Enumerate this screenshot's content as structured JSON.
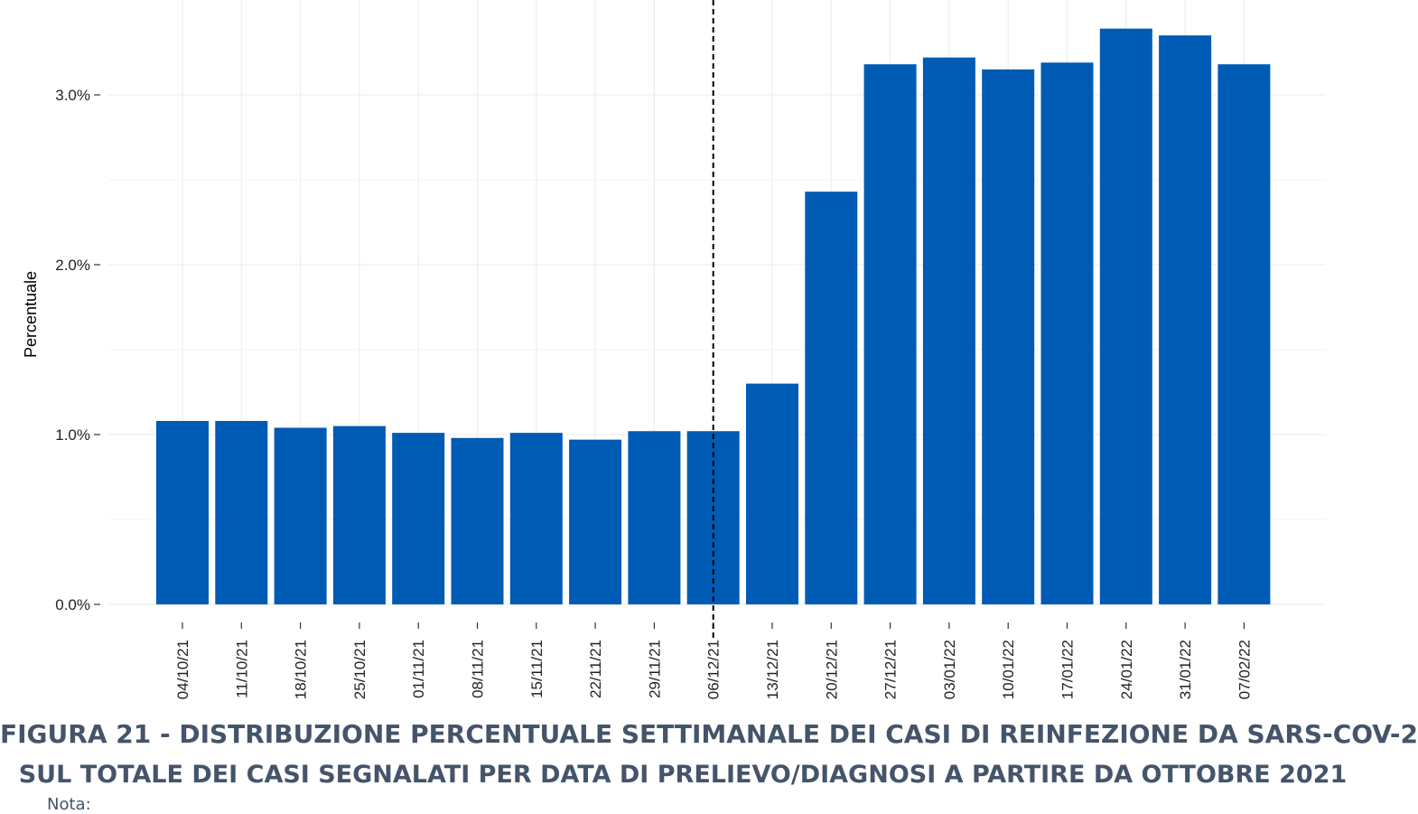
{
  "chart_data": {
    "type": "bar",
    "ylabel": "Percentuale",
    "xlabel": "",
    "ylim": [
      0,
      3.4
    ],
    "yticks": [
      0,
      1,
      2,
      3
    ],
    "ytick_labels": [
      "0.0%",
      "1.0%",
      "2.0%",
      "3.0%"
    ],
    "grid": true,
    "bar_color": "#005bb5",
    "categories": [
      "04/10/21",
      "11/10/21",
      "18/10/21",
      "25/10/21",
      "01/11/21",
      "08/11/21",
      "15/11/21",
      "22/11/21",
      "29/11/21",
      "06/12/21",
      "13/12/21",
      "20/12/21",
      "27/12/21",
      "03/01/22",
      "10/01/22",
      "17/01/22",
      "24/01/22",
      "31/01/22",
      "07/02/22"
    ],
    "values": [
      1.08,
      1.08,
      1.04,
      1.05,
      1.01,
      0.98,
      1.01,
      0.97,
      1.02,
      1.02,
      1.3,
      2.43,
      3.18,
      3.22,
      3.15,
      3.19,
      3.39,
      3.35,
      3.18
    ],
    "vline_category": "06/12/21",
    "vline_style": "dashed"
  },
  "caption": {
    "line1": "FIGURA 21 - DISTRIBUZIONE PERCENTUALE SETTIMANALE DEI CASI DI REINFEZIONE DA SARS-COV-2",
    "line2": "SUL TOTALE DEI CASI SEGNALATI PER DATA DI PRELIEVO/DIAGNOSI A PARTIRE DA OTTOBRE 2021"
  },
  "note": "Nota:"
}
